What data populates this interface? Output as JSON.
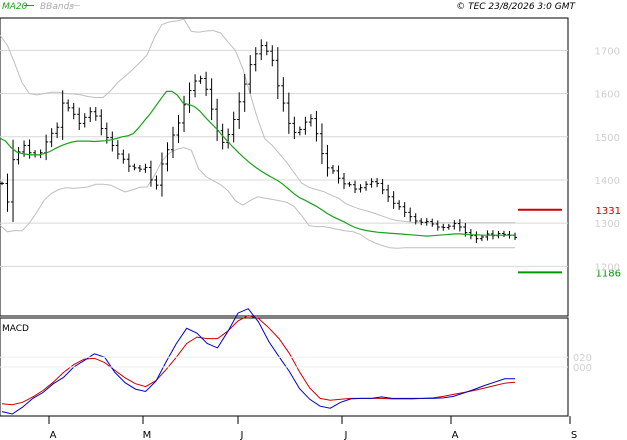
{
  "chart_data": {
    "type": "line",
    "header": {
      "legend_ma": "MA20",
      "legend_bb": "BBands",
      "copyright": "© TEC 23/8/2026 3:0 GMT"
    },
    "price_axis": {
      "ylim": [
        1085,
        1775
      ],
      "ticks": [
        1200,
        1300,
        1400,
        1500,
        1600,
        1700
      ]
    },
    "macd_axis": {
      "ylim": [
        -100,
        100
      ],
      "ticks": [
        {
          "label": "020",
          "value": 20
        },
        {
          "label": "000",
          "value": 0
        }
      ]
    },
    "macd_label": "MACD",
    "months": [
      "A",
      "M",
      "J",
      "J",
      "A",
      "S"
    ],
    "levels": [
      {
        "label": "1331",
        "value": 1331,
        "color": "#cc0000"
      },
      {
        "label": "1186",
        "value": 1186,
        "color": "#009900"
      }
    ],
    "series": [
      {
        "name": "price",
        "color": "#000000",
        "values": [
          1392,
          1349,
          1447,
          1465,
          1480,
          1463,
          1458,
          1463,
          1488,
          1508,
          1522,
          1578,
          1567,
          1552,
          1531,
          1545,
          1558,
          1548,
          1519,
          1498,
          1480,
          1460,
          1448,
          1432,
          1428,
          1425,
          1429,
          1400,
          1388,
          1437,
          1470,
          1504,
          1532,
          1574,
          1607,
          1629,
          1635,
          1610,
          1564,
          1514,
          1487,
          1505,
          1540,
          1581,
          1622,
          1667,
          1692,
          1711,
          1698,
          1677,
          1618,
          1578,
          1531,
          1510,
          1517,
          1534,
          1542,
          1507,
          1461,
          1428,
          1421,
          1404,
          1391,
          1389,
          1379,
          1382,
          1390,
          1396,
          1392,
          1377,
          1361,
          1346,
          1338,
          1325,
          1315,
          1305,
          1302,
          1304,
          1298,
          1291,
          1290,
          1293,
          1299,
          1291,
          1278,
          1271,
          1264,
          1268,
          1275,
          1271,
          1276,
          1274,
          1272,
          1267
        ]
      },
      {
        "name": "MA20",
        "color": "#1aa21a",
        "values": [
          1497,
          1490,
          1475,
          1465,
          1461,
          1459,
          1458,
          1458,
          1461,
          1466,
          1473,
          1479,
          1484,
          1488,
          1490,
          1490,
          1490,
          1489,
          1490,
          1491,
          1493,
          1496,
          1500,
          1502,
          1507,
          1521,
          1537,
          1552,
          1570,
          1588,
          1605,
          1605,
          1596,
          1578,
          1575,
          1570,
          1560,
          1545,
          1532,
          1519,
          1504,
          1490,
          1476,
          1463,
          1451,
          1440,
          1430,
          1421,
          1413,
          1406,
          1399,
          1390,
          1379,
          1368,
          1359,
          1353,
          1346,
          1339,
          1331,
          1322,
          1315,
          1309,
          1303,
          1296,
          1290,
          1286,
          1283,
          1281,
          1279,
          1278,
          1277,
          1276,
          1275,
          1274,
          1273,
          1272,
          1271,
          1270,
          1271,
          1272,
          1273,
          1274,
          1275,
          1275,
          1274,
          1273,
          1273,
          1272,
          1272,
          1272,
          1272,
          1272,
          1272,
          1272
        ]
      },
      {
        "name": "BB-upper",
        "color": "#bfbfbf",
        "values": [
          1735,
          1712,
          1670,
          1625,
          1600,
          1597,
          1600,
          1603,
          1603,
          1600,
          1599,
          1597,
          1593,
          1591,
          1591,
          1606,
          1626,
          1640,
          1655,
          1672,
          1690,
          1730,
          1760,
          1766,
          1768,
          1772,
          1744,
          1742,
          1745,
          1746,
          1740,
          1719,
          1700,
          1658,
          1600,
          1542,
          1495,
          1480,
          1460,
          1440,
          1416,
          1393,
          1383,
          1378,
          1373,
          1365,
          1358,
          1345,
          1338,
          1332,
          1328,
          1322,
          1316,
          1310,
          1306,
          1304,
          1302,
          1301,
          1301,
          1301,
          1301,
          1301,
          1301,
          1301,
          1301,
          1301,
          1301,
          1301,
          1301,
          1301,
          1301
        ]
      },
      {
        "name": "BB-lower",
        "color": "#bfbfbf",
        "values": [
          1295,
          1280,
          1283,
          1282,
          1300,
          1325,
          1353,
          1369,
          1378,
          1382,
          1381,
          1382,
          1384,
          1390,
          1390,
          1388,
          1380,
          1372,
          1377,
          1383,
          1384,
          1410,
          1444,
          1462,
          1471,
          1475,
          1469,
          1426,
          1408,
          1398,
          1389,
          1375,
          1352,
          1342,
          1352,
          1361,
          1358,
          1355,
          1352,
          1348,
          1338,
          1318,
          1294,
          1292,
          1292,
          1289,
          1285,
          1282,
          1280,
          1274,
          1262,
          1254,
          1248,
          1243,
          1242,
          1243,
          1243,
          1243,
          1243,
          1243,
          1243,
          1243,
          1243,
          1243,
          1243,
          1243,
          1243,
          1243,
          1243,
          1243,
          1243
        ]
      },
      {
        "name": "MACD",
        "color": "#0000cc",
        "values": [
          -91,
          -96,
          -82,
          -64,
          -52,
          -34,
          -21,
          0,
          13,
          27,
          20,
          -11,
          -32,
          -45,
          -50,
          -29,
          11,
          48,
          79,
          69,
          48,
          39,
          72,
          110,
          119,
          92,
          52,
          21,
          -9,
          -44,
          -66,
          -80,
          -84,
          -72,
          -65,
          -64,
          -64,
          -61,
          -64,
          -64,
          -64,
          -64,
          -64,
          -63,
          -60,
          -53,
          -46,
          -38,
          -31,
          -24,
          -24
        ]
      },
      {
        "name": "Signal",
        "color": "#cc0000",
        "values": [
          -75,
          -77,
          -72,
          -61,
          -48,
          -31,
          -11,
          5,
          16,
          18,
          9,
          -7,
          -22,
          -34,
          -40,
          -28,
          -5,
          20,
          48,
          61,
          58,
          58,
          73,
          94,
          105,
          99,
          80,
          58,
          28,
          -10,
          -43,
          -64,
          -68,
          -66,
          -64,
          -64,
          -64,
          -64,
          -65,
          -65,
          -65,
          -64,
          -63,
          -60,
          -56,
          -52,
          -48,
          -43,
          -38,
          -33,
          -31
        ]
      }
    ]
  }
}
